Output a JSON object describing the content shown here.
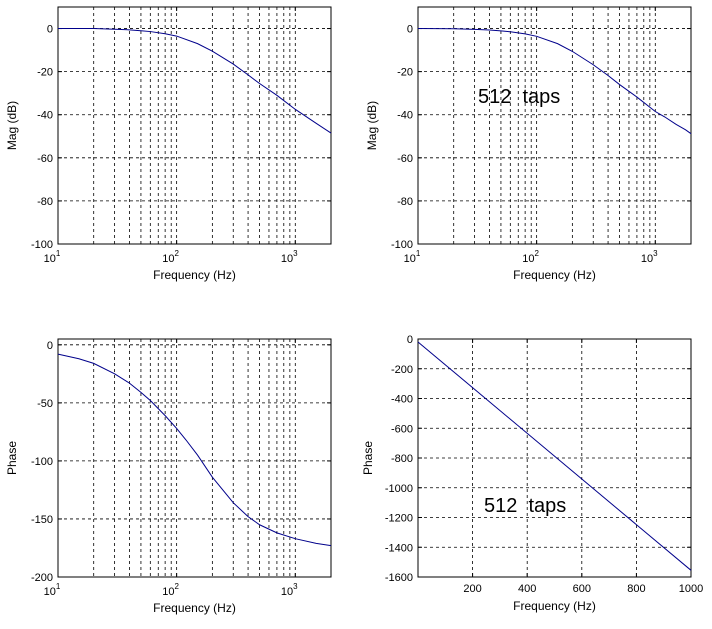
{
  "colors": {
    "line": "#00008b",
    "axes": "#000000",
    "background": "#ffffff"
  },
  "chart_data": [
    {
      "type": "line",
      "panel": "top-left",
      "xscale": "log",
      "xlim": [
        10,
        2000
      ],
      "ylim": [
        -100,
        10
      ],
      "xlabel": "Frequency (Hz)",
      "ylabel": "Mag (dB)",
      "x_ticks": [
        {
          "value": 10,
          "base": "10",
          "exp": "1"
        },
        {
          "value": 100,
          "base": "10",
          "exp": "2"
        },
        {
          "value": 1000,
          "base": "10",
          "exp": "3"
        }
      ],
      "y_ticks": [
        0,
        -20,
        -40,
        -60,
        -80,
        -100
      ],
      "grid": true,
      "annotation": "",
      "series": [
        {
          "x": [
            10,
            20,
            30,
            40,
            50,
            60,
            80,
            100,
            150,
            200,
            300,
            400,
            500,
            700,
            1000,
            1500,
            2000
          ],
          "y": [
            0,
            0,
            -0.3,
            -0.6,
            -1,
            -1.4,
            -2.4,
            -3.5,
            -7,
            -10.5,
            -16.5,
            -21.5,
            -25.5,
            -31,
            -37.5,
            -44,
            -48.5
          ]
        }
      ]
    },
    {
      "type": "line",
      "panel": "top-right",
      "xscale": "log",
      "xlim": [
        10,
        2000
      ],
      "ylim": [
        -100,
        10
      ],
      "xlabel": "Frequency (Hz)",
      "ylabel": "Mag (dB)",
      "x_ticks": [
        {
          "value": 10,
          "base": "10",
          "exp": "1"
        },
        {
          "value": 100,
          "base": "10",
          "exp": "2"
        },
        {
          "value": 1000,
          "base": "10",
          "exp": "3"
        }
      ],
      "y_ticks": [
        0,
        -20,
        -40,
        -60,
        -80,
        -100
      ],
      "grid": true,
      "annotation": "512  taps",
      "series": [
        {
          "x": [
            10,
            20,
            30,
            40,
            50,
            60,
            80,
            100,
            150,
            200,
            300,
            400,
            500,
            700,
            1000,
            1200,
            1500,
            1800,
            2000
          ],
          "y": [
            0,
            -0.1,
            -0.4,
            -0.7,
            -1.1,
            -1.5,
            -2.5,
            -3.6,
            -7,
            -10.6,
            -16.8,
            -21.8,
            -26,
            -31.8,
            -38.5,
            -41,
            -44.5,
            -47,
            -48.8
          ]
        }
      ]
    },
    {
      "type": "line",
      "panel": "bottom-left",
      "xscale": "log",
      "xlim": [
        10,
        2000
      ],
      "ylim": [
        -200,
        5
      ],
      "xlabel": "Frequency (Hz)",
      "ylabel": "Phase",
      "x_ticks": [
        {
          "value": 10,
          "base": "10",
          "exp": "1"
        },
        {
          "value": 100,
          "base": "10",
          "exp": "2"
        },
        {
          "value": 1000,
          "base": "10",
          "exp": "3"
        }
      ],
      "y_ticks": [
        0,
        -50,
        -100,
        -150,
        -200
      ],
      "grid": true,
      "annotation": "",
      "series": [
        {
          "x": [
            10,
            15,
            20,
            30,
            40,
            50,
            60,
            70,
            80,
            100,
            120,
            150,
            200,
            300,
            400,
            500,
            700,
            1000,
            1500,
            2000
          ],
          "y": [
            -8,
            -12,
            -16,
            -25,
            -33,
            -41,
            -48,
            -55,
            -61,
            -72,
            -82,
            -95,
            -114,
            -136,
            -148,
            -155,
            -162,
            -167,
            -171,
            -173
          ]
        }
      ]
    },
    {
      "type": "line",
      "panel": "bottom-right",
      "xscale": "linear",
      "xlim": [
        0,
        1000
      ],
      "ylim": [
        -1600,
        0
      ],
      "xlabel": "Frequency (Hz)",
      "ylabel": "Phase",
      "x_ticks": [
        200,
        400,
        600,
        800,
        1000
      ],
      "y_ticks": [
        0,
        -200,
        -400,
        -600,
        -800,
        -1000,
        -1200,
        -1400,
        -1600
      ],
      "grid": true,
      "annotation": "512  taps",
      "series": [
        {
          "x": [
            0,
            1000
          ],
          "y": [
            -20,
            -1555
          ]
        }
      ]
    }
  ]
}
